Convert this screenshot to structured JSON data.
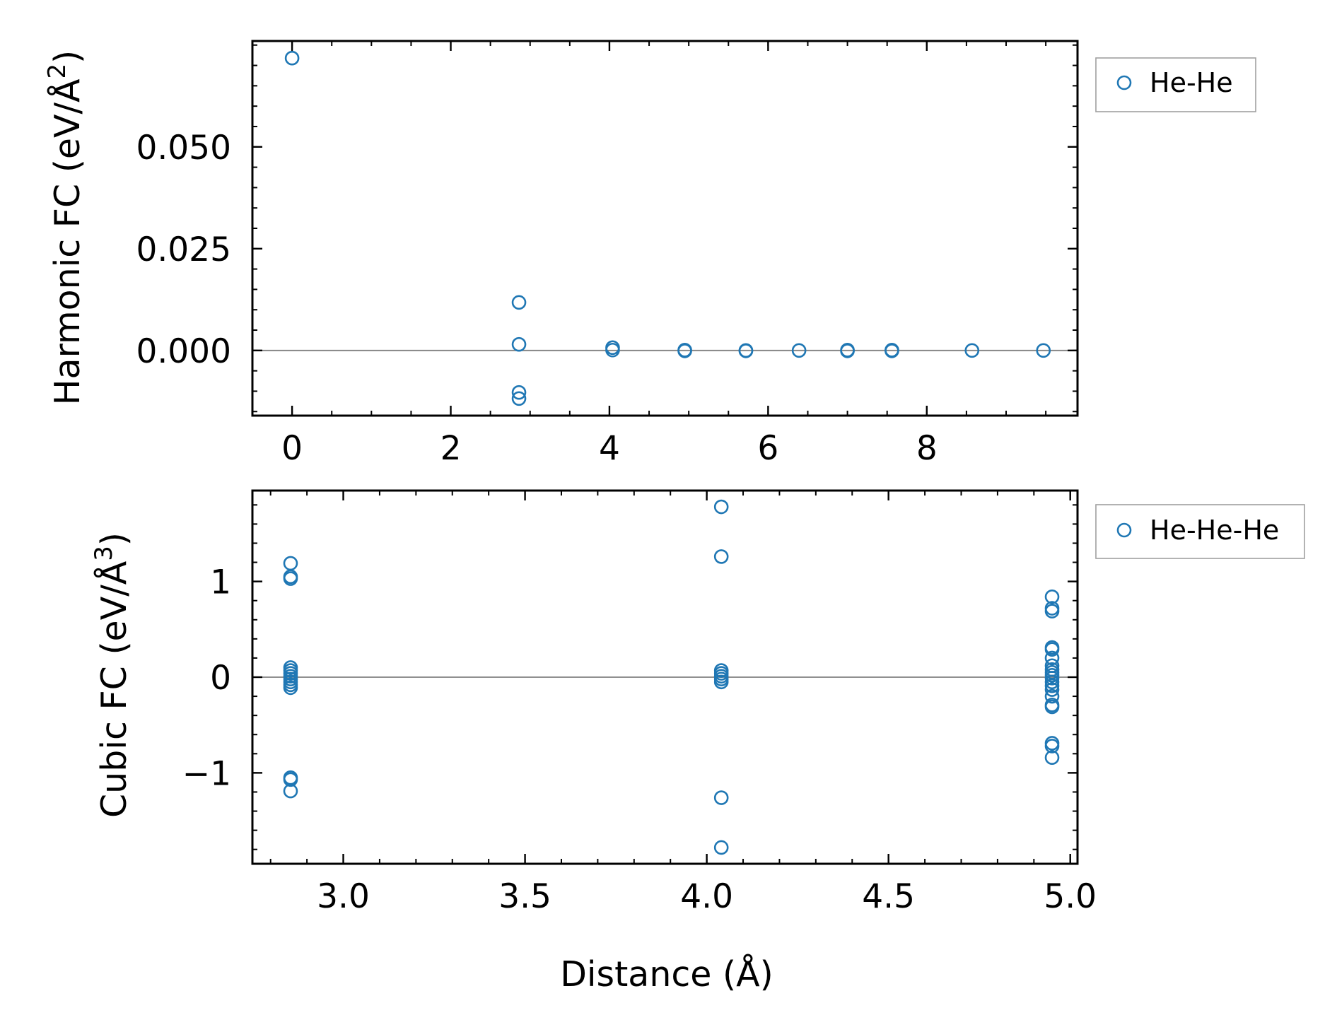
{
  "colors": {
    "marker": "#1f77b4",
    "zero_line": "#808080",
    "axes": "#000000",
    "legend_border": "#a0a0a0"
  },
  "chart_data": [
    {
      "type": "scatter",
      "ylabel": "Harmonic FC (eV/Å",
      "ylabel_superscript": "2",
      "ylabel_close": ")",
      "xlabel": "",
      "xlim": [
        -0.5,
        9.9
      ],
      "ylim": [
        -0.016,
        0.076
      ],
      "xticks": [
        0,
        2,
        4,
        6,
        8
      ],
      "xtick_labels": [
        "0",
        "2",
        "4",
        "6",
        "8"
      ],
      "yticks": [
        0.0,
        0.025,
        0.05
      ],
      "ytick_labels": [
        "0.000",
        "0.025",
        "0.050"
      ],
      "x_minor_step": 0.5,
      "y_minor_step": 0.005,
      "zero_line": true,
      "grid": false,
      "legend_position": "outside right, top",
      "series": [
        {
          "name": "He-He",
          "points": [
            [
              0.0,
              0.0718
            ],
            [
              2.86,
              0.0118
            ],
            [
              2.86,
              0.0015
            ],
            [
              2.86,
              -0.0103
            ],
            [
              2.86,
              -0.0118
            ],
            [
              4.04,
              0.0007
            ],
            [
              4.04,
              0.0001
            ],
            [
              4.95,
              0.0001
            ],
            [
              4.95,
              -0.0001
            ],
            [
              5.72,
              0.0
            ],
            [
              5.72,
              -0.0001
            ],
            [
              6.39,
              0.0
            ],
            [
              7.0,
              0.0001
            ],
            [
              7.0,
              -0.0001
            ],
            [
              7.56,
              0.0001
            ],
            [
              7.56,
              -0.0001
            ],
            [
              8.57,
              0.0
            ],
            [
              9.47,
              0.0
            ]
          ]
        }
      ]
    },
    {
      "type": "scatter",
      "ylabel": "Cubic FC (eV/Å",
      "ylabel_superscript": "3",
      "ylabel_close": ")",
      "xlabel": "Distance (Å)",
      "xlim": [
        2.75,
        5.02
      ],
      "ylim": [
        -1.95,
        1.95
      ],
      "xticks": [
        3.0,
        3.5,
        4.0,
        4.5,
        5.0
      ],
      "xtick_labels": [
        "3.0",
        "3.5",
        "4.0",
        "4.5",
        "5.0"
      ],
      "yticks": [
        -1,
        0,
        1
      ],
      "ytick_labels": [
        "−1",
        "0",
        "1"
      ],
      "x_minor_step": 0.1,
      "y_minor_step": 0.2,
      "zero_line": true,
      "grid": false,
      "legend_position": "outside right, top",
      "series": [
        {
          "name": "He-He-He",
          "points": [
            [
              2.855,
              1.19
            ],
            [
              2.855,
              1.05
            ],
            [
              2.855,
              1.03
            ],
            [
              2.855,
              0.1
            ],
            [
              2.855,
              0.07
            ],
            [
              2.855,
              0.04
            ],
            [
              2.855,
              0.01
            ],
            [
              2.855,
              -0.02
            ],
            [
              2.855,
              -0.05
            ],
            [
              2.855,
              -0.08
            ],
            [
              2.855,
              -0.11
            ],
            [
              2.855,
              -1.05
            ],
            [
              2.855,
              -1.07
            ],
            [
              2.855,
              -1.19
            ],
            [
              4.04,
              1.78
            ],
            [
              4.04,
              1.26
            ],
            [
              4.04,
              0.07
            ],
            [
              4.04,
              0.04
            ],
            [
              4.04,
              0.01
            ],
            [
              4.04,
              -0.02
            ],
            [
              4.04,
              -0.05
            ],
            [
              4.04,
              -1.26
            ],
            [
              4.04,
              -1.78
            ],
            [
              4.95,
              0.84
            ],
            [
              4.95,
              0.72
            ],
            [
              4.95,
              0.69
            ],
            [
              4.95,
              0.31
            ],
            [
              4.95,
              0.29
            ],
            [
              4.95,
              0.2
            ],
            [
              4.95,
              0.12
            ],
            [
              4.95,
              0.08
            ],
            [
              4.95,
              0.05
            ],
            [
              4.95,
              0.02
            ],
            [
              4.95,
              -0.01
            ],
            [
              4.95,
              -0.05
            ],
            [
              4.95,
              -0.09
            ],
            [
              4.95,
              -0.13
            ],
            [
              4.95,
              -0.2
            ],
            [
              4.95,
              -0.29
            ],
            [
              4.95,
              -0.31
            ],
            [
              4.95,
              -0.69
            ],
            [
              4.95,
              -0.72
            ],
            [
              4.95,
              -0.84
            ]
          ]
        }
      ]
    }
  ]
}
